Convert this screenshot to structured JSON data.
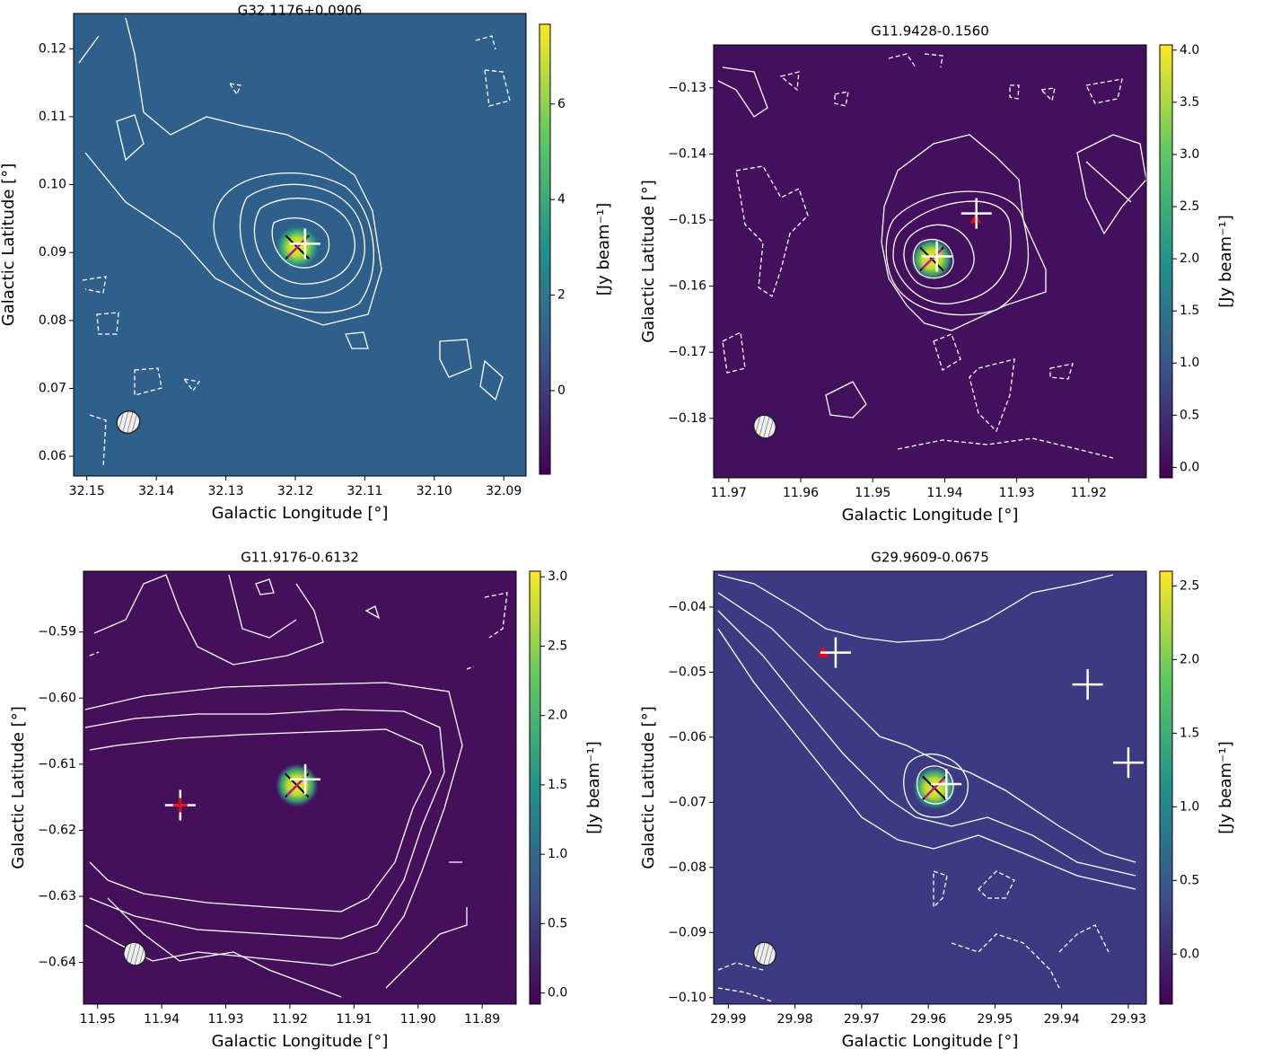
{
  "chart_data": [
    {
      "type": "image",
      "title": "G32.1176+0.0906",
      "xlabel": "Galactic Longitude [°]",
      "ylabel": "Galactic Latitude [°]",
      "colorbar_label": "[Jy beam⁻¹]",
      "xlim": [
        32.1519,
        32.0868
      ],
      "ylim": [
        0.0571,
        0.1252
      ],
      "xticks": [
        32.15,
        32.14,
        32.13,
        32.12,
        32.11,
        {
          "value": 32.1,
          "label": "32.10"
        },
        32.09
      ],
      "yticks": [
        0.06,
        0.07,
        0.08,
        0.09,
        {
          "value": 0.1,
          "label": "0.10"
        },
        0.11,
        0.12
      ],
      "clim": [
        -1.75,
        7.67
      ],
      "cticks": [
        0,
        2,
        4,
        6
      ],
      "markers": [
        {
          "shape": "x",
          "color": "#000000",
          "x": [
            32.1197
          ],
          "y": [
            0.0908
          ]
        },
        {
          "shape": "plus",
          "color": "#ffffff",
          "x": [
            32.1186
          ],
          "y": [
            0.0913
          ]
        }
      ]
    },
    {
      "type": "image",
      "title": "G11.9428-0.1560",
      "xlabel": "Galactic Longitude [°]",
      "ylabel": "Galactic Latitude [°]",
      "colorbar_label": "[Jy beam⁻¹]",
      "xlim": [
        11.9721,
        11.912
      ],
      "ylim": [
        -0.189,
        -0.1235
      ],
      "xticks": [
        11.97,
        11.96,
        11.95,
        11.94,
        11.93,
        11.92
      ],
      "yticks": [
        {
          "value": -0.18,
          "label": "−0.18"
        },
        {
          "value": -0.17,
          "label": "−0.17"
        },
        {
          "value": -0.16,
          "label": "−0.16"
        },
        {
          "value": -0.15,
          "label": "−0.15"
        },
        {
          "value": -0.14,
          "label": "−0.14"
        },
        {
          "value": -0.13,
          "label": "−0.13"
        }
      ],
      "clim": [
        -0.1,
        4.05
      ],
      "cticks": [
        {
          "value": 0,
          "label": "0.0"
        },
        0.5,
        {
          "value": 1,
          "label": "1.0"
        },
        1.5,
        {
          "value": 2,
          "label": "2.0"
        },
        2.5,
        {
          "value": 3,
          "label": "3.0"
        },
        3.5,
        {
          "value": 4,
          "label": "4.0"
        }
      ],
      "markers": [
        {
          "shape": "x",
          "color": "#000000",
          "x": [
            11.9418
          ],
          "y": [
            -0.1559
          ]
        },
        {
          "shape": "triangle",
          "color": "#ff0000",
          "x": [
            11.9357
          ],
          "y": [
            -0.1498
          ]
        },
        {
          "shape": "plus",
          "color": "#ffffff",
          "x": [
            11.9356,
            11.9411
          ],
          "y": [
            -0.149,
            -0.1555
          ]
        }
      ]
    },
    {
      "type": "image",
      "title": "G11.9176-0.6132",
      "xlabel": "Galactic Longitude [°]",
      "ylabel": "Galactic Latitude [°]",
      "colorbar_label": "[Jy beam⁻¹]",
      "xlim": [
        11.9522,
        11.8847
      ],
      "ylim": [
        -0.6463,
        -0.5808
      ],
      "xticks": [
        11.95,
        11.94,
        11.93,
        11.92,
        11.91,
        {
          "value": 11.9,
          "label": "11.90"
        },
        11.89
      ],
      "yticks": [
        {
          "value": -0.64,
          "label": "−0.64"
        },
        {
          "value": -0.63,
          "label": "−0.63"
        },
        {
          "value": -0.62,
          "label": "−0.62"
        },
        {
          "value": -0.61,
          "label": "−0.61"
        },
        {
          "value": -0.6,
          "label": "−0.60"
        },
        {
          "value": -0.59,
          "label": "−0.59"
        }
      ],
      "clim": [
        -0.08,
        3.04
      ],
      "cticks": [
        {
          "value": 0,
          "label": "0.0"
        },
        0.5,
        {
          "value": 1,
          "label": "1.0"
        },
        1.5,
        {
          "value": 2,
          "label": "2.0"
        },
        2.5,
        {
          "value": 3,
          "label": "3.0"
        }
      ],
      "markers": [
        {
          "shape": "x",
          "color": "#000000",
          "x": [
            11.9189
          ],
          "y": [
            -0.6132
          ]
        },
        {
          "shape": "plus",
          "color": "#ffffff",
          "x": [
            11.9176,
            11.9371
          ],
          "y": [
            -0.6123,
            -0.6162
          ]
        },
        {
          "shape": "smallplus",
          "color": "#ff0000",
          "x": [
            11.9371
          ],
          "y": [
            -0.6162
          ]
        }
      ]
    },
    {
      "type": "image",
      "title": "G29.9609-0.0675",
      "xlabel": "Galactic Longitude [°]",
      "ylabel": "Galactic Latitude [°]",
      "colorbar_label": "[Jy beam⁻¹]",
      "xlim": [
        29.9922,
        29.9273
      ],
      "ylim": [
        -0.101,
        -0.0345
      ],
      "xticks": [
        29.99,
        29.98,
        29.97,
        29.96,
        29.95,
        29.94,
        29.93
      ],
      "yticks": [
        {
          "value": -0.1,
          "label": "−0.10"
        },
        {
          "value": -0.09,
          "label": "−0.09"
        },
        {
          "value": -0.08,
          "label": "−0.08"
        },
        {
          "value": -0.07,
          "label": "−0.07"
        },
        {
          "value": -0.06,
          "label": "−0.06"
        },
        {
          "value": -0.05,
          "label": "−0.05"
        },
        {
          "value": -0.04,
          "label": "−0.04"
        }
      ],
      "clim": [
        -0.34,
        2.6
      ],
      "cticks": [
        {
          "value": 0,
          "label": "0.0"
        },
        0.5,
        {
          "value": 1,
          "label": "1.0"
        },
        1.5,
        {
          "value": 2,
          "label": "2.0"
        },
        2.5
      ],
      "markers": [
        {
          "shape": "x",
          "color": "#000000",
          "x": [
            29.9591
          ],
          "y": [
            -0.0678
          ]
        },
        {
          "shape": "triangle",
          "color": "#ff0000",
          "x": [
            29.9758
          ],
          "y": [
            -0.047
          ]
        },
        {
          "shape": "plus",
          "color": "#ffffff",
          "x": [
            29.9739,
            29.9361,
            29.93,
            29.9573
          ],
          "y": [
            -0.047,
            -0.0519,
            -0.0639,
            -0.0672
          ]
        }
      ]
    }
  ]
}
